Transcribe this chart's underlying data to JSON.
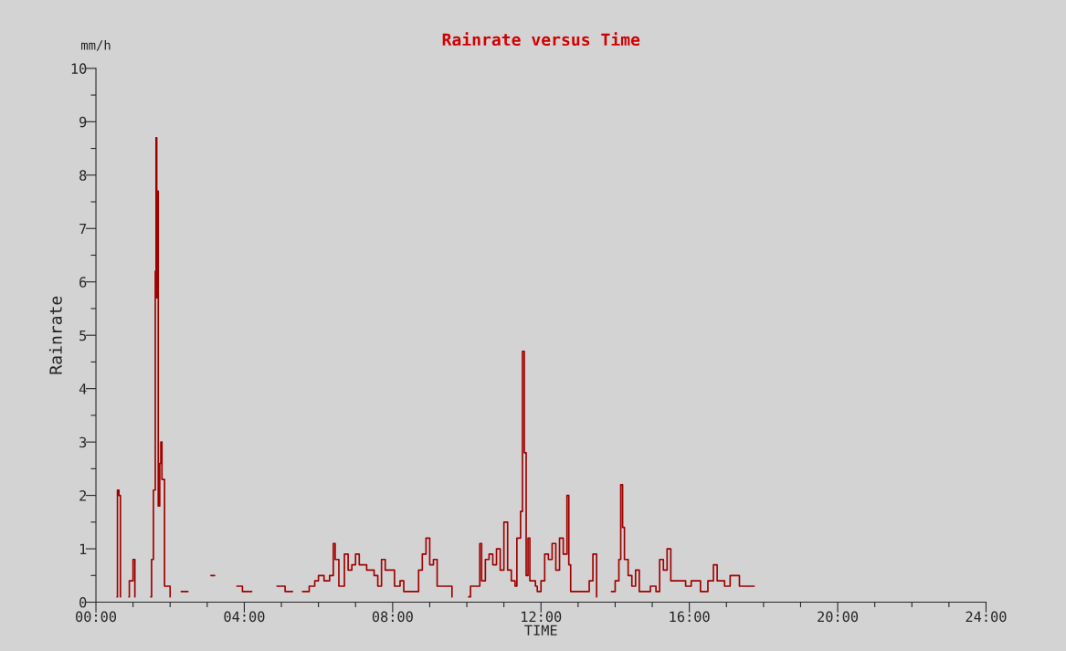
{
  "chart_data": {
    "type": "step",
    "title": "Rainrate versus Time",
    "xlabel": "TIME",
    "ylabel": "Rainrate",
    "annotations": [
      "mm/h"
    ],
    "x": [
      0.57,
      0.58,
      0.62,
      0.66,
      null,
      0.89,
      0.9,
      1.0,
      1.05,
      null,
      1.48,
      1.5,
      1.55,
      1.6,
      1.62,
      1.64,
      1.66,
      1.68,
      1.72,
      1.75,
      1.78,
      1.85,
      2.0,
      null,
      2.3,
      2.48,
      null,
      3.1,
      3.2,
      null,
      3.8,
      3.95,
      4.2,
      null,
      4.88,
      5.1,
      5.3,
      null,
      5.57,
      5.75,
      5.9,
      6.0,
      6.15,
      6.3,
      6.4,
      6.45,
      6.55,
      6.7,
      6.8,
      6.9,
      7.0,
      7.1,
      7.3,
      7.5,
      7.6,
      7.7,
      7.8,
      8.05,
      8.2,
      8.3,
      8.7,
      8.8,
      8.9,
      9.0,
      9.1,
      9.2,
      9.5,
      9.6,
      null,
      10.05,
      10.1,
      10.3,
      10.35,
      10.4,
      10.5,
      10.6,
      10.7,
      10.8,
      10.9,
      11.0,
      11.1,
      11.2,
      11.3,
      11.35,
      11.45,
      11.5,
      11.55,
      11.6,
      11.65,
      11.7,
      11.85,
      11.9,
      12.0,
      12.1,
      12.2,
      12.3,
      12.4,
      12.5,
      12.6,
      12.7,
      12.75,
      12.8,
      13.3,
      13.4,
      13.5,
      null,
      13.9,
      14.0,
      14.1,
      14.15,
      14.2,
      14.25,
      14.35,
      14.45,
      14.55,
      14.65,
      14.95,
      15.1,
      15.2,
      15.3,
      15.4,
      15.5,
      15.9,
      16.05,
      16.3,
      16.5,
      16.65,
      16.75,
      16.95,
      17.1,
      17.35,
      17.75
    ],
    "series": [
      {
        "color": "#a00000",
        "values": [
          0.1,
          2.1,
          2.0,
          0.1,
          null,
          0.1,
          0.4,
          0.8,
          0.1,
          null,
          0.1,
          0.8,
          2.1,
          6.2,
          8.7,
          5.7,
          7.7,
          1.8,
          2.6,
          3.0,
          2.3,
          0.3,
          0.1,
          null,
          0.2,
          0.2,
          null,
          0.5,
          0.5,
          null,
          0.3,
          0.2,
          0.2,
          null,
          0.3,
          0.2,
          0.2,
          null,
          0.2,
          0.3,
          0.4,
          0.5,
          0.4,
          0.5,
          1.1,
          0.8,
          0.3,
          0.9,
          0.6,
          0.7,
          0.9,
          0.7,
          0.6,
          0.5,
          0.3,
          0.8,
          0.6,
          0.3,
          0.4,
          0.2,
          0.6,
          0.9,
          1.2,
          0.7,
          0.8,
          0.3,
          0.3,
          0.1,
          null,
          0.1,
          0.3,
          0.3,
          1.1,
          0.4,
          0.8,
          0.9,
          0.7,
          1.0,
          0.6,
          1.5,
          0.6,
          0.4,
          0.3,
          1.2,
          1.7,
          4.7,
          2.8,
          0.5,
          1.2,
          0.4,
          0.3,
          0.2,
          0.4,
          0.9,
          0.8,
          1.1,
          0.6,
          1.2,
          0.9,
          2.0,
          0.7,
          0.2,
          0.4,
          0.9,
          0.1,
          null,
          0.2,
          0.4,
          0.8,
          2.2,
          1.4,
          0.8,
          0.5,
          0.3,
          0.6,
          0.2,
          0.3,
          0.2,
          0.8,
          0.6,
          1.0,
          0.4,
          0.3,
          0.4,
          0.2,
          0.4,
          0.7,
          0.4,
          0.3,
          0.5,
          0.3,
          0.3
        ]
      }
    ],
    "xlim": [
      0,
      24
    ],
    "ylim": [
      0,
      10
    ],
    "xticks": [
      {
        "value": 0,
        "label": "00:00"
      },
      {
        "value": 1,
        "label": null
      },
      {
        "value": 2,
        "label": null
      },
      {
        "value": 3,
        "label": null
      },
      {
        "value": 4,
        "label": "04:00"
      },
      {
        "value": 5,
        "label": null
      },
      {
        "value": 6,
        "label": null
      },
      {
        "value": 7,
        "label": null
      },
      {
        "value": 8,
        "label": "08:00"
      },
      {
        "value": 9,
        "label": null
      },
      {
        "value": 10,
        "label": null
      },
      {
        "value": 11,
        "label": null
      },
      {
        "value": 12,
        "label": "12:00"
      },
      {
        "value": 13,
        "label": null
      },
      {
        "value": 14,
        "label": null
      },
      {
        "value": 15,
        "label": null
      },
      {
        "value": 16,
        "label": "16:00"
      },
      {
        "value": 17,
        "label": null
      },
      {
        "value": 18,
        "label": null
      },
      {
        "value": 19,
        "label": null
      },
      {
        "value": 20,
        "label": "20:00"
      },
      {
        "value": 21,
        "label": null
      },
      {
        "value": 22,
        "label": null
      },
      {
        "value": 23,
        "label": null
      },
      {
        "value": 24,
        "label": "24:00"
      }
    ],
    "yticks": [
      0,
      {
        "value": 0.5,
        "label": null
      },
      1,
      {
        "value": 1.5,
        "label": null
      },
      2,
      {
        "value": 2.5,
        "label": null
      },
      3,
      {
        "value": 3.5,
        "label": null
      },
      4,
      {
        "value": 4.5,
        "label": null
      },
      5,
      {
        "value": 5.5,
        "label": null
      },
      6,
      {
        "value": 6.5,
        "label": null
      },
      7,
      {
        "value": 7.5,
        "label": null
      },
      8,
      {
        "value": 8.5,
        "label": null
      },
      9,
      {
        "value": 9.5,
        "label": null
      },
      10
    ],
    "grid": false,
    "legend": false
  }
}
